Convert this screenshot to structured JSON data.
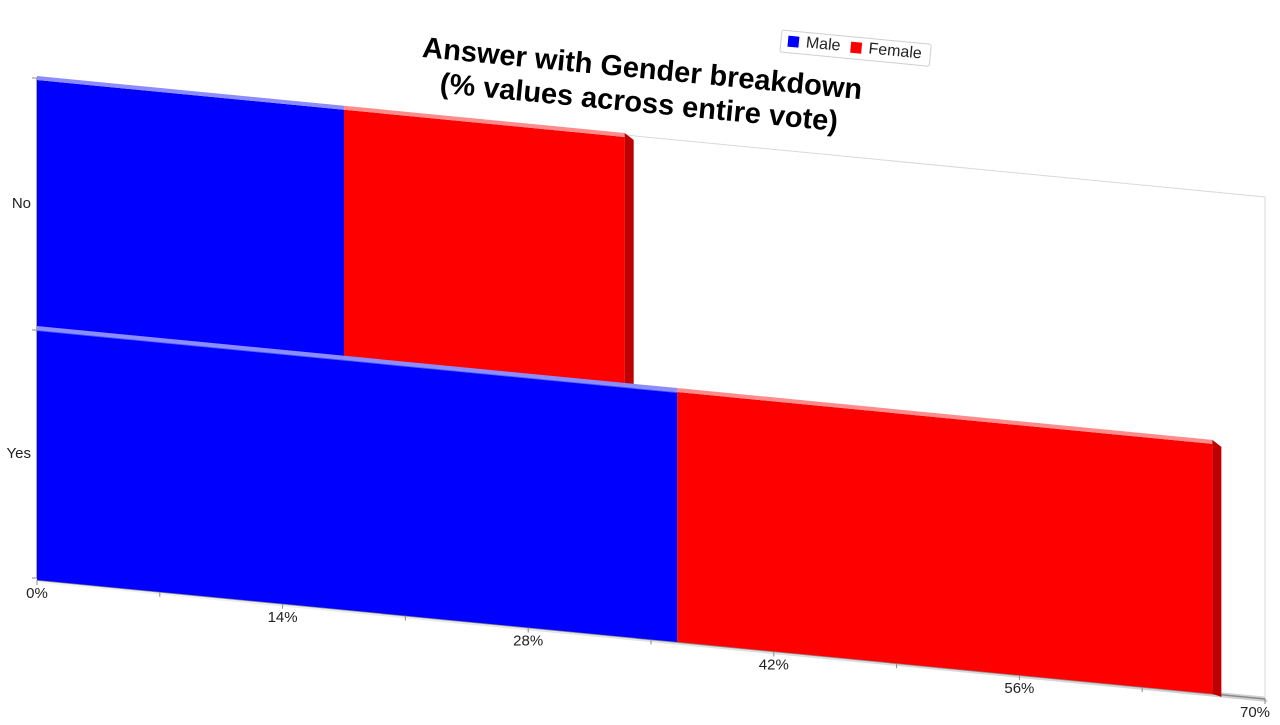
{
  "chart_data": {
    "type": "bar",
    "orientation": "horizontal",
    "stacked": true,
    "title_lines": [
      "Answer with Gender breakdown",
      "(% values across entire vote)"
    ],
    "categories": [
      "No",
      "Yes"
    ],
    "series": [
      {
        "name": "Male",
        "values": [
          17.5,
          36.5
        ],
        "color": "#0000ff"
      },
      {
        "name": "Female",
        "values": [
          16.0,
          30.5
        ],
        "color": "#ff0000"
      }
    ],
    "x_ticks": [
      "0%",
      "14%",
      "28%",
      "42%",
      "56%",
      "70%"
    ],
    "xlim": [
      0,
      70
    ],
    "legend_position": "top-right",
    "grid": false
  }
}
